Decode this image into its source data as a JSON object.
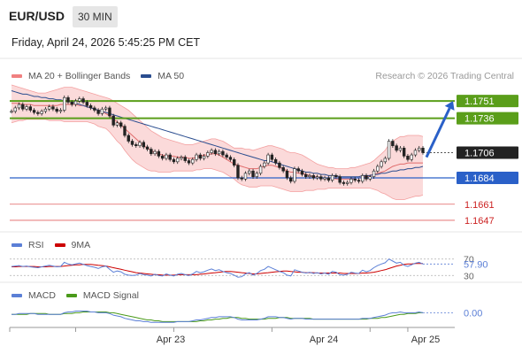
{
  "header": {
    "symbol": "EUR/USD",
    "timeframe": "30 MIN",
    "datetime": "Friday, April 24, 2026 5:45:25 PM CET",
    "credit": "Research © 2026 Trading Central"
  },
  "legend": {
    "main": [
      {
        "label": "MA 20 + Bollinger Bands",
        "color": "#f08080"
      },
      {
        "label": "MA 50",
        "color": "#2a4d8f"
      }
    ],
    "rsi": [
      {
        "label": "RSI",
        "color": "#5b7fd6"
      },
      {
        "label": "9MA",
        "color": "#cc0000"
      }
    ],
    "macd": [
      {
        "label": "MACD",
        "color": "#5b7fd6"
      },
      {
        "label": "MACD Signal",
        "color": "#4a9a1a"
      }
    ]
  },
  "colors": {
    "resistance": "#5a9e1a",
    "support": "#2a60c8",
    "lower_target": "#e06060",
    "current_price_bg": "#222222",
    "arrow": "#2a60c8",
    "band_fill": "#fbd6d6",
    "candle": "#222222"
  },
  "chart_data": {
    "type": "candlestick",
    "ylim": [
      1.164,
      1.1765
    ],
    "xticks": [
      "Apr 23",
      "Apr 24",
      "Apr 25"
    ],
    "levels": [
      {
        "value": 1.1751,
        "label": "1.1751",
        "kind": "resistance"
      },
      {
        "value": 1.1736,
        "label": "1.1736",
        "kind": "resistance"
      },
      {
        "value": 1.1706,
        "label": "1.1706",
        "kind": "current"
      },
      {
        "value": 1.1684,
        "label": "1.1684",
        "kind": "support"
      },
      {
        "value": 1.1661,
        "label": "1.1661",
        "kind": "target"
      },
      {
        "value": 1.1647,
        "label": "1.1647",
        "kind": "target"
      }
    ],
    "close": [
      1.1742,
      1.1745,
      1.1748,
      1.1744,
      1.1746,
      1.1743,
      1.1741,
      1.174,
      1.1742,
      1.1744,
      1.1746,
      1.1744,
      1.1742,
      1.1743,
      1.1754,
      1.175,
      1.1748,
      1.1751,
      1.1753,
      1.175,
      1.1747,
      1.1745,
      1.1743,
      1.174,
      1.1744,
      1.1745,
      1.1738,
      1.173,
      1.1732,
      1.1729,
      1.1721,
      1.1716,
      1.1713,
      1.1712,
      1.1715,
      1.1711,
      1.1709,
      1.1705,
      1.1707,
      1.1703,
      1.1701,
      1.1704,
      1.17,
      1.1698,
      1.1701,
      1.1702,
      1.1699,
      1.1697,
      1.17,
      1.1704,
      1.1701,
      1.1703,
      1.1706,
      1.1708,
      1.1705,
      1.1707,
      1.1704,
      1.1702,
      1.17,
      1.1695,
      1.1684,
      1.1683,
      1.1688,
      1.169,
      1.1685,
      1.1688,
      1.1694,
      1.1697,
      1.1704,
      1.17,
      1.1697,
      1.1693,
      1.169,
      1.1684,
      1.1681,
      1.1692,
      1.169,
      1.1687,
      1.1685,
      1.1686,
      1.1684,
      1.1685,
      1.1683,
      1.1684,
      1.1682,
      1.1686,
      1.1685,
      1.168,
      1.1679,
      1.168,
      1.1683,
      1.1682,
      1.1681,
      1.1686,
      1.1683,
      1.1685,
      1.169,
      1.1694,
      1.1698,
      1.1701,
      1.1716,
      1.1712,
      1.1708,
      1.171,
      1.1703,
      1.17,
      1.1704,
      1.1708,
      1.171,
      1.1706
    ],
    "bollinger_upper": [
      1.1765,
      1.1764,
      1.1763,
      1.1762,
      1.1761,
      1.176,
      1.1759,
      1.1758,
      1.1758,
      1.1758,
      1.1759,
      1.176,
      1.1761,
      1.1762,
      1.1763,
      1.1763,
      1.1763,
      1.1762,
      1.1761,
      1.176,
      1.1759,
      1.1758,
      1.1757,
      1.1756,
      1.1755,
      1.1754,
      1.1753,
      1.1751,
      1.1749,
      1.1747,
      1.1745,
      1.1743,
      1.174,
      1.1737,
      1.1734,
      1.1731,
      1.1728,
      1.1725,
      1.1723,
      1.1721,
      1.1719,
      1.1718,
      1.1717,
      1.1716,
      1.1715,
      1.1714,
      1.1713,
      1.1713,
      1.1713,
      1.1714,
      1.1715,
      1.1716,
      1.1717,
      1.1718,
      1.1718,
      1.1717,
      1.1716,
      1.1714,
      1.1712,
      1.171,
      1.171,
      1.171,
      1.1709,
      1.1709,
      1.1708,
      1.1709,
      1.171,
      1.1711,
      1.1712,
      1.1712,
      1.1711,
      1.171,
      1.1709,
      1.1707,
      1.1706,
      1.1706,
      1.1705,
      1.1704,
      1.1702,
      1.17,
      1.1698,
      1.1696,
      1.1695,
      1.1694,
      1.1693,
      1.1693,
      1.1692,
      1.1692,
      1.1692,
      1.1692,
      1.1693,
      1.1693,
      1.1694,
      1.1695,
      1.1696,
      1.1697,
      1.1699,
      1.1702,
      1.1705,
      1.1708,
      1.1713,
      1.1716,
      1.1718,
      1.172,
      1.172,
      1.1721,
      1.1721,
      1.1721,
      1.1721,
      1.172
    ],
    "bollinger_lower": [
      1.1732,
      1.1733,
      1.1734,
      1.1734,
      1.1735,
      1.1735,
      1.1735,
      1.1735,
      1.1735,
      1.1735,
      1.1734,
      1.1734,
      1.1734,
      1.1734,
      1.1733,
      1.1733,
      1.1733,
      1.1733,
      1.1733,
      1.1733,
      1.1733,
      1.1732,
      1.1731,
      1.1729,
      1.1728,
      1.1727,
      1.1724,
      1.172,
      1.1716,
      1.1713,
      1.1708,
      1.1704,
      1.17,
      1.1697,
      1.1695,
      1.1693,
      1.1691,
      1.169,
      1.169,
      1.1689,
      1.1689,
      1.1689,
      1.1689,
      1.169,
      1.169,
      1.169,
      1.169,
      1.169,
      1.169,
      1.1691,
      1.1691,
      1.1692,
      1.1692,
      1.1692,
      1.1691,
      1.169,
      1.1689,
      1.1687,
      1.1685,
      1.1683,
      1.168,
      1.1678,
      1.1677,
      1.1676,
      1.1676,
      1.1676,
      1.1677,
      1.1677,
      1.1677,
      1.1677,
      1.1676,
      1.1675,
      1.1674,
      1.1673,
      1.1672,
      1.1672,
      1.1672,
      1.1672,
      1.1673,
      1.1673,
      1.1673,
      1.1674,
      1.1674,
      1.1674,
      1.1675,
      1.1675,
      1.1675,
      1.1675,
      1.1675,
      1.1675,
      1.1675,
      1.1675,
      1.1675,
      1.1675,
      1.1675,
      1.1675,
      1.1674,
      1.1673,
      1.1671,
      1.167,
      1.1668,
      1.1666,
      1.1665,
      1.1665,
      1.1665,
      1.1666,
      1.1667,
      1.1668,
      1.1668,
      1.1669
    ],
    "ma20": [
      1.1749,
      1.1749,
      1.1749,
      1.1748,
      1.1748,
      1.1748,
      1.1747,
      1.1747,
      1.1747,
      1.1747,
      1.1747,
      1.1747,
      1.1747,
      1.1748,
      1.1748,
      1.1748,
      1.1748,
      1.1748,
      1.1747,
      1.1747,
      1.1746,
      1.1745,
      1.1744,
      1.1743,
      1.1742,
      1.174,
      1.1738,
      1.1735,
      1.1733,
      1.173,
      1.1727,
      1.1724,
      1.1721,
      1.1718,
      1.1715,
      1.1712,
      1.171,
      1.1708,
      1.1706,
      1.1705,
      1.1704,
      1.1703,
      1.1703,
      1.1703,
      1.1702,
      1.1702,
      1.1702,
      1.1701,
      1.1701,
      1.1702,
      1.1703,
      1.1704,
      1.1704,
      1.1705,
      1.1705,
      1.1704,
      1.1702,
      1.17,
      1.1698,
      1.1696,
      1.1695,
      1.1694,
      1.1693,
      1.1692,
      1.1692,
      1.1692,
      1.1693,
      1.1694,
      1.1695,
      1.1695,
      1.1694,
      1.1693,
      1.1692,
      1.169,
      1.1689,
      1.1689,
      1.1688,
      1.1688,
      1.1687,
      1.1686,
      1.1685,
      1.1685,
      1.1684,
      1.1684,
      1.1684,
      1.1684,
      1.1683,
      1.1683,
      1.1683,
      1.1683,
      1.1683,
      1.1684,
      1.1684,
      1.1685,
      1.1685,
      1.1686,
      1.1687,
      1.1688,
      1.1689,
      1.169,
      1.1692,
      1.1694,
      1.1695,
      1.1696,
      1.1696,
      1.1697,
      1.1697,
      1.1697,
      1.1697,
      1.1697
    ],
    "ma50": [
      1.176,
      1.1759,
      1.1758,
      1.1757,
      1.1757,
      1.1756,
      1.1755,
      1.1755,
      1.1754,
      1.1754,
      1.1753,
      1.1753,
      1.1752,
      1.1752,
      1.1751,
      1.1751,
      1.175,
      1.1749,
      1.1748,
      1.1747,
      1.1746,
      1.1745,
      1.1744,
      1.1743,
      1.1742,
      1.1741,
      1.174,
      1.1739,
      1.1738,
      1.1737,
      1.1736,
      1.1735,
      1.1734,
      1.1733,
      1.1732,
      1.1731,
      1.173,
      1.1729,
      1.1728,
      1.1727,
      1.1726,
      1.1725,
      1.1724,
      1.1723,
      1.1722,
      1.1721,
      1.172,
      1.1719,
      1.1718,
      1.1717,
      1.1716,
      1.1715,
      1.1714,
      1.1713,
      1.1712,
      1.1711,
      1.171,
      1.1709,
      1.1708,
      1.1707,
      1.1706,
      1.1705,
      1.1704,
      1.1703,
      1.1702,
      1.1701,
      1.17,
      1.1699,
      1.1699,
      1.1698,
      1.1697,
      1.1696,
      1.1695,
      1.1694,
      1.1693,
      1.1692,
      1.1691,
      1.169,
      1.1689,
      1.1689,
      1.1688,
      1.1688,
      1.1687,
      1.1687,
      1.1686,
      1.1686,
      1.1686,
      1.1685,
      1.1685,
      1.1685,
      1.1685,
      1.1685,
      1.1685,
      1.1686,
      1.1686,
      1.1686,
      1.1687,
      1.1687,
      1.1688,
      1.1688,
      1.1689,
      1.169,
      1.169,
      1.1691,
      1.1691,
      1.1692,
      1.1692,
      1.1693,
      1.1693,
      1.1694
    ],
    "forecast": {
      "from": 1.1702,
      "to": 1.1751
    },
    "rsi": {
      "levels": [
        "70",
        "30"
      ],
      "value_label": "57.90",
      "ylim": [
        20,
        80
      ],
      "rsi": [
        52,
        53,
        54,
        52,
        53,
        51,
        50,
        49,
        51,
        53,
        55,
        53,
        51,
        52,
        62,
        58,
        56,
        58,
        60,
        57,
        54,
        52,
        50,
        47,
        51,
        53,
        45,
        38,
        41,
        39,
        33,
        31,
        30,
        31,
        35,
        32,
        31,
        29,
        33,
        30,
        29,
        34,
        31,
        29,
        33,
        35,
        32,
        30,
        34,
        40,
        37,
        39,
        43,
        46,
        42,
        44,
        40,
        37,
        35,
        31,
        26,
        27,
        34,
        37,
        31,
        35,
        42,
        45,
        52,
        48,
        44,
        40,
        37,
        31,
        29,
        44,
        41,
        38,
        36,
        38,
        35,
        37,
        34,
        36,
        33,
        40,
        38,
        32,
        31,
        33,
        38,
        36,
        35,
        43,
        39,
        42,
        49,
        54,
        58,
        61,
        70,
        65,
        60,
        62,
        55,
        52,
        56,
        60,
        62,
        57.9
      ],
      "ma9": [
        51,
        51,
        52,
        52,
        52,
        52,
        52,
        51,
        51,
        51,
        52,
        52,
        52,
        52,
        53,
        54,
        55,
        56,
        56,
        57,
        57,
        57,
        56,
        55,
        54,
        53,
        51,
        49,
        47,
        45,
        43,
        41,
        39,
        37,
        36,
        35,
        34,
        33,
        32,
        32,
        31,
        31,
        31,
        31,
        32,
        32,
        32,
        32,
        32,
        32,
        33,
        34,
        35,
        36,
        37,
        38,
        39,
        40,
        40,
        39,
        38,
        37,
        36,
        35,
        34,
        34,
        35,
        36,
        37,
        38,
        39,
        40,
        41,
        41,
        40,
        39,
        38,
        38,
        37,
        37,
        37,
        36,
        36,
        36,
        36,
        36,
        36,
        36,
        35,
        35,
        35,
        35,
        35,
        36,
        36,
        37,
        38,
        40,
        42,
        44,
        47,
        50,
        53,
        55,
        57,
        58,
        58,
        59,
        59,
        59
      ]
    },
    "macd": {
      "value_label": "0.00",
      "ylim": [
        -0.0012,
        0.001
      ],
      "macd": [
        0.0001,
        0.0001,
        0.0002,
        0.0002,
        0.0002,
        0.0002,
        0.0002,
        0.0001,
        0.0001,
        0.0001,
        0.0001,
        0.0001,
        0.0001,
        0.0001,
        0.0003,
        0.0004,
        0.0004,
        0.0005,
        0.0005,
        0.0005,
        0.0005,
        0.0004,
        0.0004,
        0.0003,
        0.0003,
        0.0003,
        0.0002,
        0.0,
        -0.0001,
        -0.0002,
        -0.0004,
        -0.0005,
        -0.0006,
        -0.0007,
        -0.0007,
        -0.0008,
        -0.0008,
        -0.0009,
        -0.0009,
        -0.0009,
        -0.0009,
        -0.0009,
        -0.0009,
        -0.0009,
        -0.0008,
        -0.0008,
        -0.0008,
        -0.0008,
        -0.0007,
        -0.0006,
        -0.0006,
        -0.0005,
        -0.0004,
        -0.0003,
        -0.0003,
        -0.0002,
        -0.0002,
        -0.0002,
        -0.0002,
        -0.0003,
        -0.0005,
        -0.0006,
        -0.0006,
        -0.0006,
        -0.0006,
        -0.0006,
        -0.0005,
        -0.0004,
        -0.0002,
        -0.0002,
        -0.0002,
        -0.0003,
        -0.0003,
        -0.0004,
        -0.0005,
        -0.0004,
        -0.0004,
        -0.0004,
        -0.0005,
        -0.0005,
        -0.0005,
        -0.0005,
        -0.0005,
        -0.0005,
        -0.0005,
        -0.0005,
        -0.0005,
        -0.0005,
        -0.0005,
        -0.0005,
        -0.0005,
        -0.0005,
        -0.0005,
        -0.0004,
        -0.0004,
        -0.0004,
        -0.0003,
        -0.0002,
        -0.0001,
        0.0,
        0.0002,
        0.0003,
        0.0003,
        0.0004,
        0.0003,
        0.0003,
        0.0003,
        0.0003,
        0.0004,
        0.0003
      ],
      "signal": [
        0.0001,
        0.0001,
        0.0001,
        0.0001,
        0.0001,
        0.0002,
        0.0002,
        0.0002,
        0.0002,
        0.0002,
        0.0001,
        0.0001,
        0.0001,
        0.0001,
        0.0002,
        0.0002,
        0.0002,
        0.0003,
        0.0003,
        0.0004,
        0.0004,
        0.0004,
        0.0004,
        0.0004,
        0.0004,
        0.0004,
        0.0003,
        0.0003,
        0.0002,
        0.0001,
        0.0,
        -0.0001,
        -0.0002,
        -0.0003,
        -0.0004,
        -0.0005,
        -0.0006,
        -0.0006,
        -0.0007,
        -0.0007,
        -0.0008,
        -0.0008,
        -0.0008,
        -0.0008,
        -0.0008,
        -0.0008,
        -0.0008,
        -0.0008,
        -0.0008,
        -0.0008,
        -0.0007,
        -0.0007,
        -0.0006,
        -0.0006,
        -0.0005,
        -0.0005,
        -0.0004,
        -0.0004,
        -0.0003,
        -0.0003,
        -0.0003,
        -0.0004,
        -0.0004,
        -0.0005,
        -0.0005,
        -0.0005,
        -0.0005,
        -0.0005,
        -0.0004,
        -0.0004,
        -0.0004,
        -0.0003,
        -0.0003,
        -0.0003,
        -0.0004,
        -0.0004,
        -0.0004,
        -0.0004,
        -0.0004,
        -0.0004,
        -0.0005,
        -0.0005,
        -0.0005,
        -0.0005,
        -0.0005,
        -0.0005,
        -0.0005,
        -0.0005,
        -0.0005,
        -0.0005,
        -0.0005,
        -0.0005,
        -0.0005,
        -0.0005,
        -0.0005,
        -0.0004,
        -0.0004,
        -0.0004,
        -0.0003,
        -0.0003,
        -0.0002,
        -0.0001,
        0.0,
        0.0001,
        0.0001,
        0.0002,
        0.0002,
        0.0002,
        0.0003,
        0.0003
      ]
    }
  }
}
